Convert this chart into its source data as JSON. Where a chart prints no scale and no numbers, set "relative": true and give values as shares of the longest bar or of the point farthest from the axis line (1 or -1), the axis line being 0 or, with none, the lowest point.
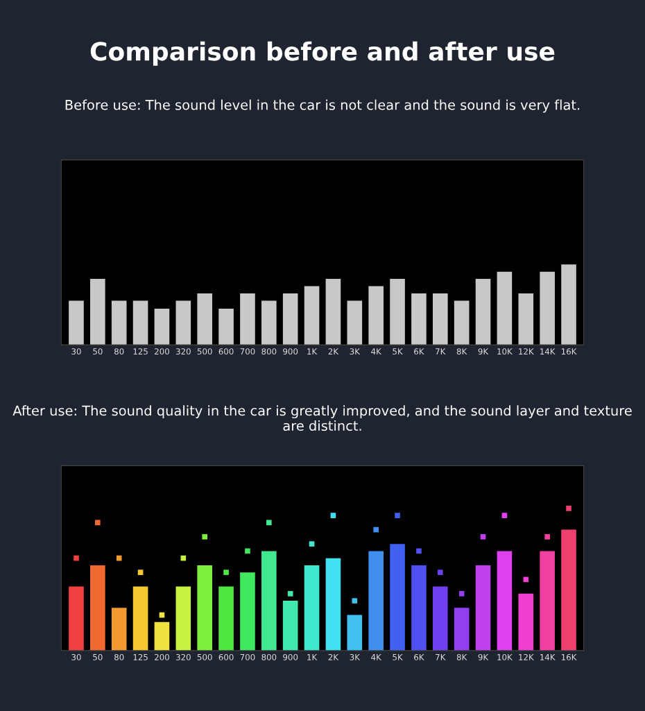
{
  "chart_data": [
    {
      "type": "bar",
      "relative": true,
      "title": "Comparison before and after use",
      "subtitle": "Before use: The sound level in the car is not clear and the sound is very flat.",
      "categories": [
        "30",
        "50",
        "80",
        "125",
        "200",
        "320",
        "500",
        "600",
        "700",
        "800",
        "900",
        "1K",
        "2K",
        "3K",
        "4K",
        "5K",
        "6K",
        "7K",
        "8K",
        "9K",
        "10K",
        "12K",
        "14K",
        "16K"
      ],
      "series": [
        {
          "color": "#c8c8c8",
          "values": [
            0.55,
            0.82,
            0.55,
            0.55,
            0.45,
            0.55,
            0.64,
            0.45,
            0.64,
            0.55,
            0.64,
            0.73,
            0.82,
            0.55,
            0.73,
            0.82,
            0.64,
            0.64,
            0.55,
            0.82,
            0.91,
            0.64,
            0.91,
            1
          ]
        }
      ]
    },
    {
      "type": "bar",
      "relative": true,
      "marker": "square",
      "subtitle": "After use: The sound quality in the car is greatly improved, and the sound layer and texture are distinct.",
      "categories": [
        "30",
        "50",
        "80",
        "125",
        "200",
        "320",
        "500",
        "600",
        "700",
        "800",
        "900",
        "1K",
        "2K",
        "3K",
        "4K",
        "5K",
        "6K",
        "7K",
        "8K",
        "9K",
        "10K",
        "12K",
        "14K",
        "16K"
      ],
      "series": [
        {
          "colors": [
            "#f04040",
            "#f06a30",
            "#f59a30",
            "#f5c830",
            "#f0e040",
            "#c8f040",
            "#80f040",
            "#50e840",
            "#40e860",
            "#40e890",
            "#40e8b0",
            "#40e8d0",
            "#40e0f0",
            "#40c0f0",
            "#4090f0",
            "#4060f0",
            "#5050f0",
            "#7040f0",
            "#9040f0",
            "#c040f0",
            "#e040f0",
            "#f040d0",
            "#f040a0",
            "#f04070"
          ],
          "values": [
            0.45,
            0.6,
            0.3,
            0.45,
            0.2,
            0.45,
            0.6,
            0.45,
            0.55,
            0.7,
            0.35,
            0.6,
            0.65,
            0.25,
            0.7,
            0.75,
            0.6,
            0.45,
            0.3,
            0.6,
            0.7,
            0.4,
            0.7,
            0.85
          ]
        },
        {
          "type": "scatter",
          "colors": [
            "#f04040",
            "#f06a30",
            "#f59a30",
            "#f5c830",
            "#f0e040",
            "#c8f040",
            "#80f040",
            "#50e840",
            "#40e860",
            "#40e890",
            "#40e8b0",
            "#40e8d0",
            "#40e0f0",
            "#40c0f0",
            "#4090f0",
            "#4060f0",
            "#5050f0",
            "#7040f0",
            "#9040f0",
            "#c040f0",
            "#e040f0",
            "#f040d0",
            "#f040a0",
            "#f04070"
          ],
          "values": [
            0.65,
            0.9,
            0.65,
            0.55,
            0.25,
            0.65,
            0.8,
            0.55,
            0.7,
            0.9,
            0.4,
            0.75,
            0.95,
            0.35,
            0.85,
            0.95,
            0.7,
            0.55,
            0.4,
            0.8,
            0.95,
            0.5,
            0.8,
            1
          ]
        }
      ]
    }
  ]
}
